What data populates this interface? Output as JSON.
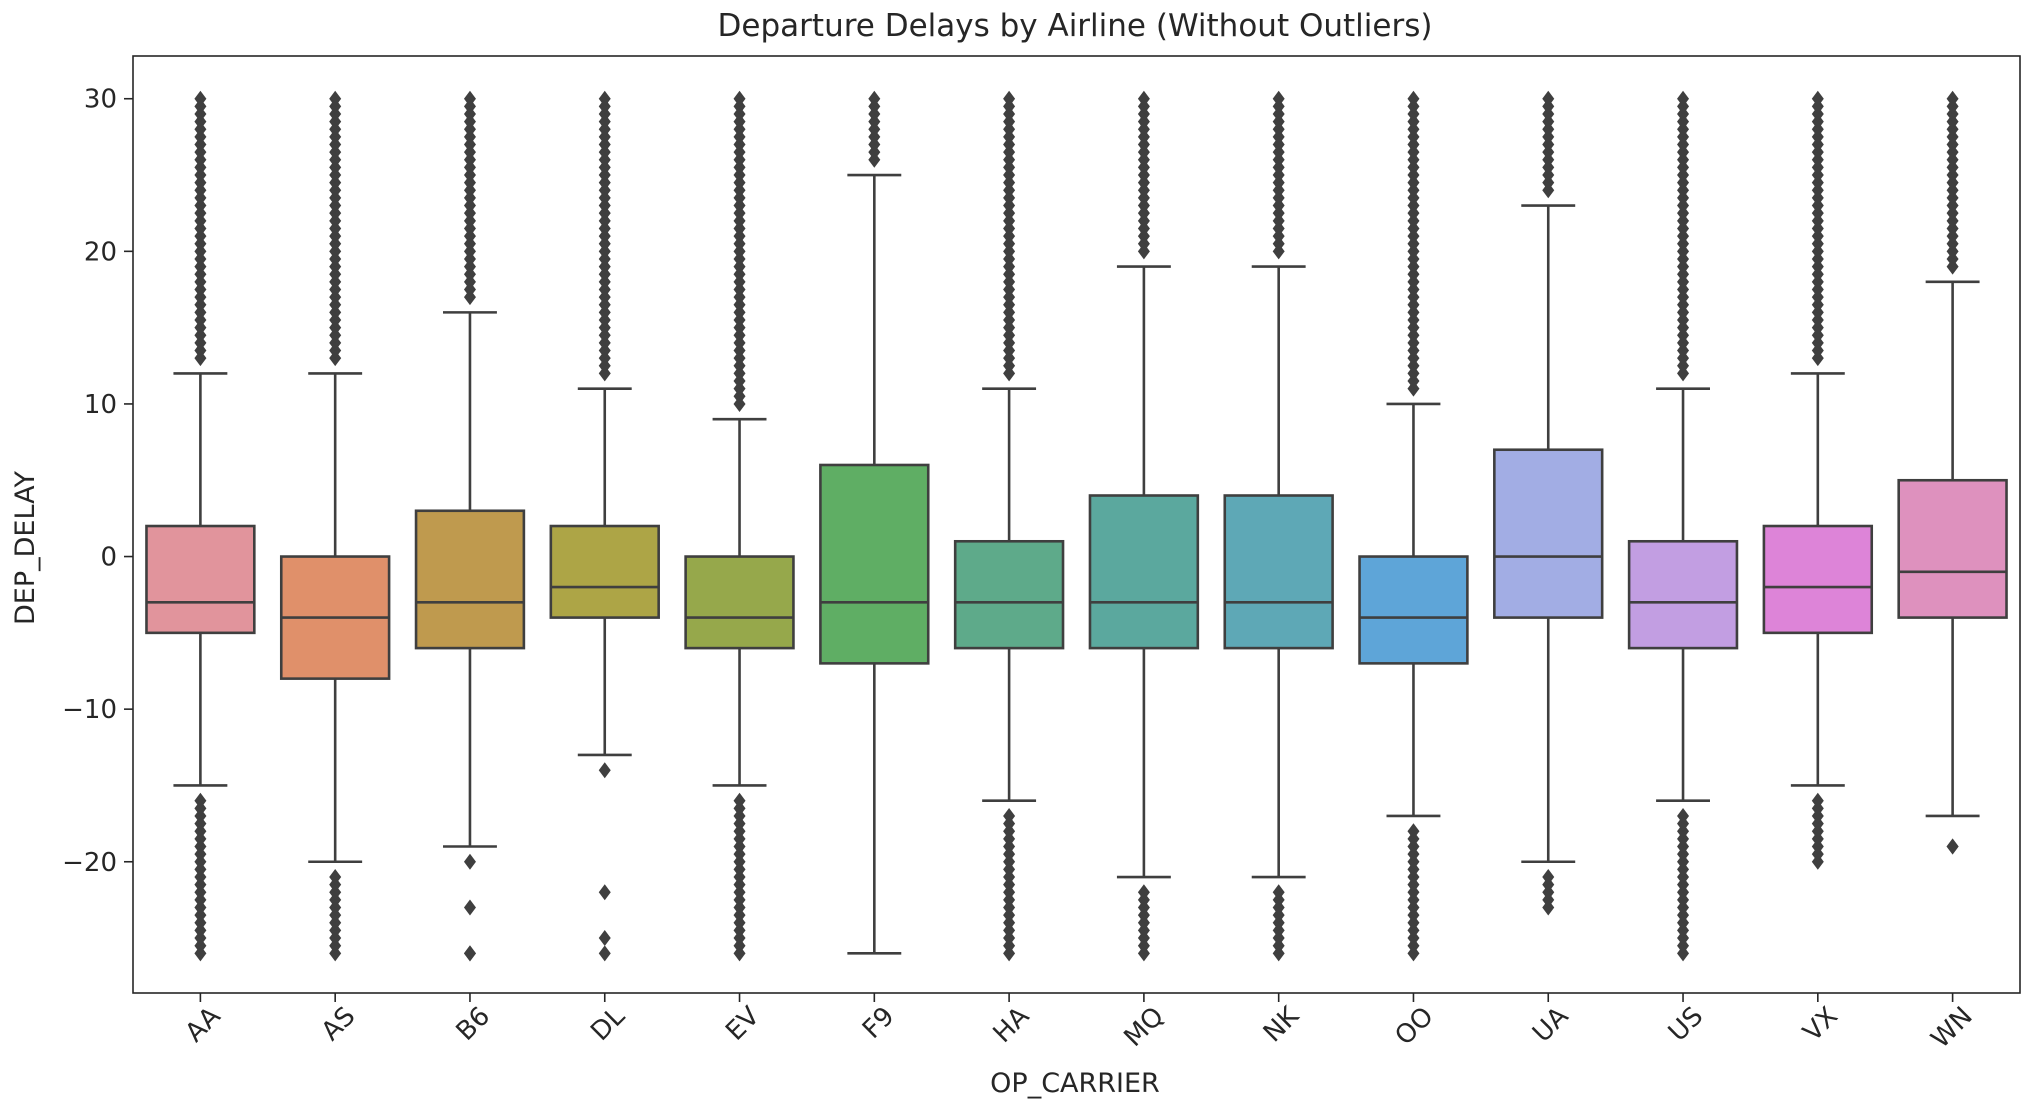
{
  "chart_data": {
    "type": "box",
    "title": "Departure Delays by Airline (Without Outliers)",
    "xlabel": "OP_CARRIER",
    "ylabel": "DEP_DELAY",
    "ylim": [
      -28.6,
      32.8
    ],
    "yticks": [
      -20,
      -10,
      0,
      10,
      20,
      30
    ],
    "ytick_labels": [
      "−20",
      "−10",
      "0",
      "10",
      "20",
      "30"
    ],
    "grid": false,
    "legend": "none",
    "categories": [
      "AA",
      "AS",
      "B6",
      "DL",
      "EV",
      "F9",
      "HA",
      "MQ",
      "NK",
      "OO",
      "UA",
      "US",
      "VX",
      "WN"
    ],
    "boxes": [
      {
        "label": "AA",
        "color": "#e1949c",
        "whisker_low": -15,
        "q1": -5,
        "median": -3,
        "q3": 2,
        "whisker_high": 12,
        "fliers_low": [
          -26,
          -16
        ],
        "fliers_high": [
          13,
          30
        ]
      },
      {
        "label": "AS",
        "color": "#e0906a",
        "whisker_low": -20,
        "q1": -8,
        "median": -4,
        "q3": 0,
        "whisker_high": 12,
        "fliers_low": [
          -26,
          -21
        ],
        "fliers_high": [
          13,
          30
        ]
      },
      {
        "label": "B6",
        "color": "#bf9a4e",
        "whisker_low": -19,
        "q1": -6,
        "median": -3,
        "q3": 3,
        "whisker_high": 16,
        "fliers_low": [
          -26,
          -26,
          -23,
          -20
        ],
        "fliers_high": [
          17,
          30
        ]
      },
      {
        "label": "DL",
        "color": "#ada546",
        "whisker_low": -13,
        "q1": -4,
        "median": -2,
        "q3": 2,
        "whisker_high": 11,
        "fliers_low": [
          -26,
          -25,
          -22,
          -14
        ],
        "fliers_high": [
          12,
          30
        ]
      },
      {
        "label": "EV",
        "color": "#96a84b",
        "whisker_low": -15,
        "q1": -6,
        "median": -4,
        "q3": 0,
        "whisker_high": 9,
        "fliers_low": [
          -26,
          -16
        ],
        "fliers_high": [
          10,
          30
        ]
      },
      {
        "label": "F9",
        "color": "#5fae64",
        "whisker_low": -26,
        "q1": -7,
        "median": -3,
        "q3": 6,
        "whisker_high": 25,
        "fliers_low": [],
        "fliers_high": [
          26,
          30
        ]
      },
      {
        "label": "HA",
        "color": "#5eaa8a",
        "whisker_low": -16,
        "q1": -6,
        "median": -3,
        "q3": 1,
        "whisker_high": 11,
        "fliers_low": [
          -26,
          -17
        ],
        "fliers_high": [
          12,
          30
        ]
      },
      {
        "label": "MQ",
        "color": "#5ba89e",
        "whisker_low": -21,
        "q1": -6,
        "median": -3,
        "q3": 4,
        "whisker_high": 19,
        "fliers_low": [
          -26,
          -22
        ],
        "fliers_high": [
          20,
          30
        ]
      },
      {
        "label": "NK",
        "color": "#5ea8b6",
        "whisker_low": -21,
        "q1": -6,
        "median": -3,
        "q3": 4,
        "whisker_high": 19,
        "fliers_low": [
          -26,
          -22
        ],
        "fliers_high": [
          20,
          30
        ]
      },
      {
        "label": "OO",
        "color": "#5ea5d8",
        "whisker_low": -17,
        "q1": -7,
        "median": -4,
        "q3": 0,
        "whisker_high": 10,
        "fliers_low": [
          -26,
          -18
        ],
        "fliers_high": [
          11,
          30
        ]
      },
      {
        "label": "UA",
        "color": "#a2ade4",
        "whisker_low": -20,
        "q1": -4,
        "median": 0,
        "q3": 7,
        "whisker_high": 23,
        "fliers_low": [
          -23,
          -21
        ],
        "fliers_high": [
          24,
          30
        ]
      },
      {
        "label": "US",
        "color": "#c29ee2",
        "whisker_low": -16,
        "q1": -6,
        "median": -3,
        "q3": 1,
        "whisker_high": 11,
        "fliers_low": [
          -26,
          -17
        ],
        "fliers_high": [
          12,
          30
        ]
      },
      {
        "label": "VX",
        "color": "#dd84d8",
        "whisker_low": -15,
        "q1": -5,
        "median": -2,
        "q3": 2,
        "whisker_high": 12,
        "fliers_low": [
          -20,
          -16
        ],
        "fliers_high": [
          13,
          30
        ]
      },
      {
        "label": "WN",
        "color": "#de91be",
        "whisker_low": -17,
        "q1": -4,
        "median": -1,
        "q3": 5,
        "whisker_high": 18,
        "fliers_low": [
          -19,
          -19
        ],
        "fliers_high": [
          19,
          30
        ]
      }
    ],
    "line_color": "#3f3f3f"
  }
}
